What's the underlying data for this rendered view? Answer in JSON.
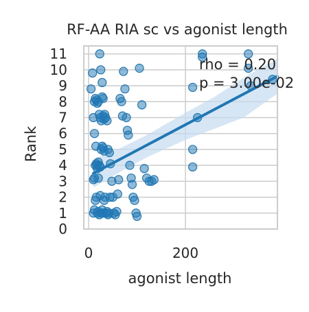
{
  "chart_data": {
    "type": "scatter",
    "title": "RF-AA RIA sc vs agonist length",
    "xlabel": "agonist length",
    "ylabel": "Rank",
    "xlim": [
      -10,
      390
    ],
    "ylim": [
      0,
      11.5
    ],
    "xticks": [
      0,
      200
    ],
    "yticks": [
      0,
      1,
      2,
      3,
      4,
      5,
      6,
      7,
      8,
      9,
      10,
      11
    ],
    "grid": true,
    "annotations": [
      "rho = 0.20",
      "p = 3.00e-02"
    ],
    "regression": {
      "x": [
        10,
        390
      ],
      "y": [
        3.5,
        9.6
      ]
    },
    "confidence_band": {
      "x": [
        10,
        60,
        120,
        200,
        260,
        320,
        390
      ],
      "upper": [
        4.4,
        5.0,
        5.9,
        7.3,
        8.3,
        9.5,
        10.7
      ],
      "lower": [
        2.6,
        3.5,
        4.5,
        5.6,
        6.3,
        7.0,
        8.5
      ]
    },
    "colors": {
      "points": "#1f77b4",
      "line": "#1f77b4",
      "band": "#c6dcef",
      "grid": "#cccccc"
    },
    "points": [
      [
        5,
        8.8
      ],
      [
        8,
        9.8
      ],
      [
        12,
        6.0
      ],
      [
        15,
        5.2
      ],
      [
        17,
        4.0
      ],
      [
        20,
        3.2
      ],
      [
        23,
        11.0
      ],
      [
        25,
        10.0
      ],
      [
        28,
        9.2
      ],
      [
        30,
        8.2
      ],
      [
        33,
        7.2
      ],
      [
        35,
        7.0
      ],
      [
        38,
        6.8
      ],
      [
        40,
        5.0
      ],
      [
        43,
        4.8
      ],
      [
        45,
        4.1
      ],
      [
        48,
        3.0
      ],
      [
        50,
        2.0
      ],
      [
        52,
        1.0
      ],
      [
        55,
        0.9
      ],
      [
        58,
        1.1
      ],
      [
        60,
        2.2
      ],
      [
        62,
        3.1
      ],
      [
        65,
        8.2
      ],
      [
        68,
        8.0
      ],
      [
        70,
        7.1
      ],
      [
        72,
        9.9
      ],
      [
        75,
        8.8
      ],
      [
        78,
        7.0
      ],
      [
        80,
        6.2
      ],
      [
        82,
        5.9
      ],
      [
        85,
        4.0
      ],
      [
        88,
        3.2
      ],
      [
        90,
        2.8
      ],
      [
        92,
        2.0
      ],
      [
        95,
        1.8
      ],
      [
        98,
        1.0
      ],
      [
        100,
        0.8
      ],
      [
        105,
        10.1
      ],
      [
        110,
        7.8
      ],
      [
        115,
        3.8
      ],
      [
        120,
        3.2
      ],
      [
        125,
        3.0
      ],
      [
        130,
        3.0
      ],
      [
        135,
        3.1
      ],
      [
        10,
        1.0
      ],
      [
        12,
        1.2
      ],
      [
        14,
        1.8
      ],
      [
        16,
        2.0
      ],
      [
        18,
        1.0
      ],
      [
        20,
        1.1
      ],
      [
        22,
        0.9
      ],
      [
        24,
        2.1
      ],
      [
        26,
        1.0
      ],
      [
        28,
        1.2
      ],
      [
        30,
        1.0
      ],
      [
        32,
        1.8
      ],
      [
        34,
        2.0
      ],
      [
        36,
        1.0
      ],
      [
        38,
        1.1
      ],
      [
        40,
        0.9
      ],
      [
        42,
        1.0
      ],
      [
        44,
        2.0
      ],
      [
        10,
        3.1
      ],
      [
        12,
        3.2
      ],
      [
        14,
        4.0
      ],
      [
        16,
        4.1
      ],
      [
        18,
        3.8
      ],
      [
        20,
        4.2
      ],
      [
        22,
        4.0
      ],
      [
        24,
        3.9
      ],
      [
        26,
        5.0
      ],
      [
        28,
        5.2
      ],
      [
        30,
        5.1
      ],
      [
        32,
        4.9
      ],
      [
        10,
        7.0
      ],
      [
        12,
        8.0
      ],
      [
        14,
        8.2
      ],
      [
        16,
        8.1
      ],
      [
        18,
        7.9
      ],
      [
        20,
        8.0
      ],
      [
        22,
        7.2
      ],
      [
        24,
        7.0
      ],
      [
        26,
        6.8
      ],
      [
        28,
        8.3
      ],
      [
        30,
        7.1
      ],
      [
        32,
        6.9
      ],
      [
        215,
        8.9
      ],
      [
        215,
        5.0
      ],
      [
        215,
        3.9
      ],
      [
        225,
        7.0
      ],
      [
        235,
        11.0
      ],
      [
        235,
        10.8
      ],
      [
        330,
        11.0
      ],
      [
        330,
        10.1
      ],
      [
        335,
        9.0
      ],
      [
        380,
        9.4
      ]
    ]
  }
}
